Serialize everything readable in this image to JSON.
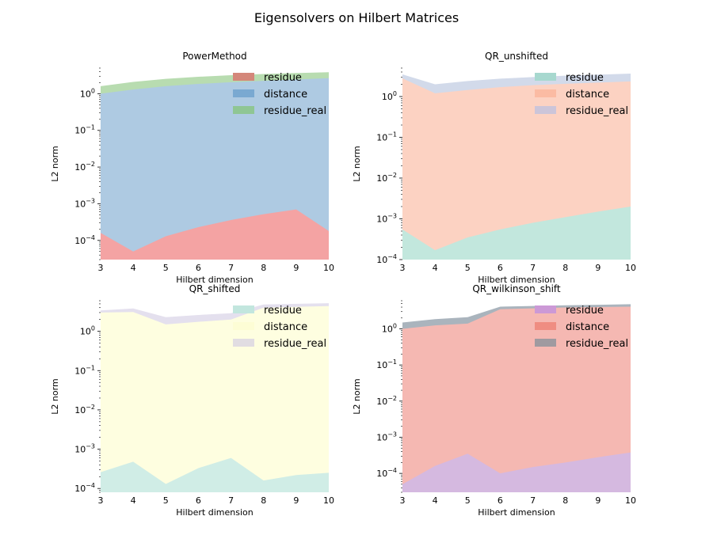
{
  "figure_title": "Eigensolvers on Hilbert Matrices",
  "chart_data": [
    {
      "type": "area",
      "title": "PowerMethod",
      "xlabel": "Hilbert dimension",
      "ylabel": "L2 norm",
      "yscale": "log",
      "x": [
        3,
        4,
        5,
        6,
        7,
        8,
        9,
        10
      ],
      "xticks": [
        "3",
        "4",
        "5",
        "6",
        "7",
        "8",
        "9",
        "10"
      ],
      "yticks": [
        {
          "v": 0.0001,
          "label": "10^-4"
        },
        {
          "v": 0.001,
          "label": "10^-3"
        },
        {
          "v": 0.01,
          "label": "10^-2"
        },
        {
          "v": 0.1,
          "label": "10^-1"
        },
        {
          "v": 1,
          "label": "10^0"
        }
      ],
      "ylim": [
        3e-05,
        5
      ],
      "legend_position": "top-right",
      "grid": false,
      "series": [
        {
          "name": "residue",
          "color": "#f4a3a3",
          "legend_color": "#d4877a",
          "values": [
            0.00016,
            5e-05,
            0.00013,
            0.00023,
            0.00036,
            0.00052,
            0.0007,
            0.00018
          ]
        },
        {
          "name": "distance",
          "color": "#aecae2",
          "legend_color": "#7aa9d1",
          "values": [
            1.0,
            1.3,
            1.6,
            1.85,
            2.05,
            2.25,
            2.45,
            2.65
          ]
        },
        {
          "name": "residue_real",
          "color": "#b8dcb0",
          "legend_color": "#8fc694",
          "values": [
            1.6,
            2.1,
            2.55,
            2.9,
            3.2,
            3.45,
            3.65,
            3.85
          ]
        }
      ]
    },
    {
      "type": "area",
      "title": "QR_unshifted",
      "xlabel": "Hilbert dimension",
      "ylabel": "L2 norm",
      "yscale": "log",
      "x": [
        3,
        4,
        5,
        6,
        7,
        8,
        9,
        10
      ],
      "xticks": [
        "3",
        "4",
        "5",
        "6",
        "7",
        "8",
        "9",
        "10"
      ],
      "yticks": [
        {
          "v": 0.0001,
          "label": "10^-4"
        },
        {
          "v": 0.001,
          "label": "10^-3"
        },
        {
          "v": 0.01,
          "label": "10^-2"
        },
        {
          "v": 0.1,
          "label": "10^-1"
        },
        {
          "v": 1,
          "label": "10^0"
        }
      ],
      "ylim": [
        0.0001,
        5
      ],
      "legend_position": "top-right",
      "grid": false,
      "series": [
        {
          "name": "residue",
          "color": "#c2e7dd",
          "legend_color": "#a7d8cf",
          "values": [
            0.00055,
            0.00017,
            0.00035,
            0.00055,
            0.0008,
            0.0011,
            0.0015,
            0.002
          ]
        },
        {
          "name": "distance",
          "color": "#fcd2c2",
          "legend_color": "#fbbba3",
          "values": [
            2.8,
            1.2,
            1.45,
            1.7,
            1.9,
            2.05,
            2.2,
            2.35
          ]
        },
        {
          "name": "residue_real",
          "color": "#d2daea",
          "legend_color": "#ccc5d9",
          "values": [
            3.5,
            2.0,
            2.4,
            2.75,
            3.0,
            3.25,
            3.45,
            3.65
          ]
        }
      ]
    },
    {
      "type": "area",
      "title": "QR_shifted",
      "xlabel": "Hilbert dimension",
      "ylabel": "L2 norm",
      "yscale": "log",
      "x": [
        3,
        4,
        5,
        6,
        7,
        8,
        9,
        10
      ],
      "xticks": [
        "3",
        "4",
        "5",
        "6",
        "7",
        "8",
        "9",
        "10"
      ],
      "yticks": [
        {
          "v": 0.0001,
          "label": "10^-4"
        },
        {
          "v": 0.001,
          "label": "10^-3"
        },
        {
          "v": 0.01,
          "label": "10^-2"
        },
        {
          "v": 0.1,
          "label": "10^-1"
        },
        {
          "v": 1,
          "label": "10^0"
        }
      ],
      "ylim": [
        8e-05,
        6
      ],
      "legend_position": "top-right",
      "grid": false,
      "series": [
        {
          "name": "residue",
          "color": "#d0ede6",
          "legend_color": "#c2e6de",
          "values": [
            0.00026,
            0.00048,
            0.00013,
            0.00033,
            0.0006,
            0.00016,
            0.00022,
            0.00025
          ]
        },
        {
          "name": "distance",
          "color": "#fefee0",
          "legend_color": "#fdfdd5",
          "values": [
            3.0,
            3.1,
            1.5,
            1.75,
            2.0,
            4.0,
            4.2,
            4.4
          ]
        },
        {
          "name": "residue_real",
          "color": "#e4e0ee",
          "legend_color": "#e1dde2",
          "values": [
            3.4,
            3.8,
            2.3,
            2.6,
            2.9,
            4.8,
            5.0,
            5.2
          ]
        }
      ]
    },
    {
      "type": "area",
      "title": "QR_wilkinson_shift",
      "xlabel": "Hilbert dimension",
      "ylabel": "L2 norm",
      "yscale": "log",
      "x": [
        3,
        4,
        5,
        6,
        7,
        8,
        9,
        10
      ],
      "xticks": [
        "3",
        "4",
        "5",
        "6",
        "7",
        "8",
        "9",
        "10"
      ],
      "yticks": [
        {
          "v": 0.0001,
          "label": "10^-4"
        },
        {
          "v": 0.001,
          "label": "10^-3"
        },
        {
          "v": 0.01,
          "label": "10^-2"
        },
        {
          "v": 0.1,
          "label": "10^-1"
        },
        {
          "v": 1,
          "label": "10^0"
        }
      ],
      "ylim": [
        3e-05,
        6
      ],
      "legend_position": "top-right",
      "grid": false,
      "series": [
        {
          "name": "residue",
          "color": "#d5b9e0",
          "legend_color": "#cc99d6",
          "values": [
            5e-05,
            0.00016,
            0.00035,
            0.0001,
            0.00015,
            0.0002,
            0.00028,
            0.00038
          ]
        },
        {
          "name": "distance",
          "color": "#f5b8b2",
          "legend_color": "#ef8d82",
          "values": [
            1.0,
            1.25,
            1.4,
            3.5,
            3.7,
            3.9,
            4.0,
            4.1
          ]
        },
        {
          "name": "residue_real",
          "color": "#aab4bd",
          "legend_color": "#a09aa0",
          "values": [
            1.5,
            1.85,
            2.1,
            4.1,
            4.3,
            4.5,
            4.65,
            4.8
          ]
        }
      ]
    }
  ]
}
